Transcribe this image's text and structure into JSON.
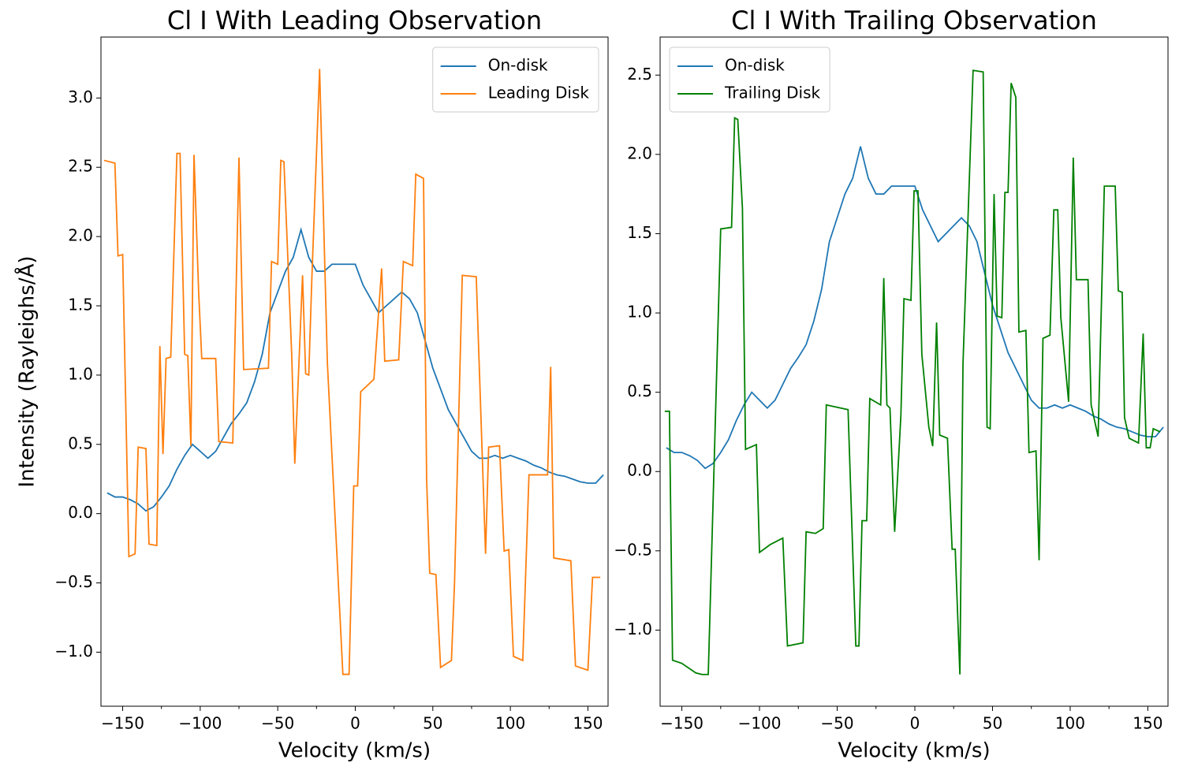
{
  "chart_data": [
    {
      "type": "line",
      "title": "Cl I With Leading Observation",
      "xlabel": "Velocity (km/s)",
      "ylabel": "Intensity (Rayleighs/Å)",
      "xlim": [
        -164,
        163
      ],
      "ylim": [
        -1.39,
        3.44
      ],
      "xticks": [
        {
          "value": -150,
          "label": "−150"
        },
        {
          "value": -100,
          "label": "−100"
        },
        {
          "value": -50,
          "label": "−50"
        },
        0,
        50,
        100,
        150
      ],
      "xminorticks": [
        -125,
        -75,
        -25,
        25,
        75,
        125
      ],
      "yticks": [
        {
          "value": -1.0,
          "label": "−1.0"
        },
        {
          "value": -0.5,
          "label": "−0.5"
        },
        {
          "value": 0,
          "label": "0.0"
        },
        0.5,
        {
          "value": 1.0,
          "label": "1.0"
        },
        1.5,
        {
          "value": 2.0,
          "label": "2.0"
        },
        2.5,
        {
          "value": 3.0,
          "label": "3.0"
        }
      ],
      "legend": "upper right",
      "series": [
        {
          "name": "On-disk",
          "color": "#1f77b4",
          "x": [
            -160,
            -155,
            -150,
            -145,
            -140,
            -135,
            -130,
            -125,
            -120,
            -115,
            -110,
            -105,
            -100,
            -95,
            -90,
            -85,
            -80,
            -75,
            -70,
            -65,
            -60,
            -55,
            -50,
            -45,
            -40,
            -35,
            -30,
            -25,
            -20,
            -15,
            -10,
            -5,
            0,
            5,
            10,
            15,
            20,
            25,
            30,
            35,
            40,
            45,
            50,
            55,
            60,
            65,
            70,
            75,
            80,
            85,
            90,
            95,
            100,
            105,
            110,
            115,
            120,
            125,
            130,
            135,
            140,
            145,
            150,
            155,
            160
          ],
          "values": [
            0.15,
            0.12,
            0.12,
            0.1,
            0.07,
            0.02,
            0.05,
            0.12,
            0.2,
            0.32,
            0.42,
            0.5,
            0.45,
            0.4,
            0.45,
            0.55,
            0.65,
            0.72,
            0.8,
            0.95,
            1.15,
            1.45,
            1.6,
            1.75,
            1.85,
            2.05,
            1.85,
            1.75,
            1.75,
            1.8,
            1.8,
            1.8,
            1.8,
            1.65,
            1.55,
            1.45,
            1.5,
            1.55,
            1.6,
            1.55,
            1.45,
            1.25,
            1.05,
            0.9,
            0.75,
            0.65,
            0.55,
            0.45,
            0.4,
            0.4,
            0.42,
            0.4,
            0.42,
            0.4,
            0.38,
            0.35,
            0.33,
            0.3,
            0.28,
            0.27,
            0.25,
            0.23,
            0.22,
            0.22,
            0.28
          ]
        },
        {
          "name": "Leading Disk",
          "color": "#ff7f0e",
          "x": [
            -162,
            -155,
            -153,
            -150,
            -146,
            -142,
            -140,
            -135,
            -133,
            -128,
            -126,
            -124,
            -122,
            -119,
            -115,
            -113,
            -110,
            -108,
            -106,
            -104,
            -101,
            -99,
            -90,
            -88,
            -79,
            -75,
            -72,
            -56,
            -54,
            -50,
            -48,
            -46,
            -41,
            -39,
            -34,
            -32,
            -30,
            -28,
            -23,
            -18,
            -8,
            -4,
            -1,
            1.5,
            3.5,
            12,
            17,
            19,
            28,
            31,
            37,
            39,
            44,
            46,
            48,
            52,
            55,
            62,
            64,
            69,
            78,
            84,
            86,
            93,
            96,
            99,
            102,
            108,
            112,
            124,
            126,
            128,
            139,
            142,
            150,
            153,
            158
          ],
          "values": [
            2.55,
            2.53,
            1.86,
            1.87,
            -0.31,
            -0.29,
            0.48,
            0.47,
            -0.22,
            -0.23,
            1.21,
            0.43,
            1.12,
            1.13,
            2.6,
            2.6,
            1.15,
            1.14,
            0.49,
            2.59,
            1.6,
            1.12,
            1.12,
            0.52,
            0.51,
            2.57,
            1.04,
            1.05,
            1.82,
            1.8,
            2.55,
            2.54,
            1.15,
            0.36,
            1.72,
            1.01,
            1.0,
            1.7,
            3.21,
            1.09,
            -1.16,
            -1.16,
            0.2,
            0.2,
            0.88,
            0.97,
            1.77,
            1.1,
            1.11,
            1.82,
            1.79,
            2.45,
            2.42,
            0.25,
            -0.43,
            -0.44,
            -1.11,
            -1.06,
            -0.5,
            1.72,
            1.71,
            -0.29,
            0.48,
            0.49,
            -0.27,
            -0.26,
            -1.03,
            -1.06,
            0.28,
            0.28,
            1.06,
            -0.32,
            -0.34,
            -1.1,
            -1.13,
            -0.46,
            -0.46
          ]
        }
      ]
    },
    {
      "type": "line",
      "title": "Cl I With Trailing Observation",
      "xlabel": "Velocity (km/s)",
      "xlim": [
        -164,
        163
      ],
      "ylim": [
        -1.48,
        2.74
      ],
      "xticks": [
        {
          "value": -150,
          "label": "−150"
        },
        {
          "value": -100,
          "label": "−100"
        },
        {
          "value": -50,
          "label": "−50"
        },
        0,
        50,
        100,
        150
      ],
      "xminorticks": [
        -125,
        -75,
        -25,
        25,
        75,
        125
      ],
      "yticks": [
        {
          "value": -1.0,
          "label": "−1.0"
        },
        {
          "value": -0.5,
          "label": "−0.5"
        },
        {
          "value": 0,
          "label": "0.0"
        },
        0.5,
        {
          "value": 1.0,
          "label": "1.0"
        },
        1.5,
        {
          "value": 2.0,
          "label": "2.0"
        },
        2.5
      ],
      "legend": "upper left",
      "series": [
        {
          "name": "On-disk",
          "color": "#1f77b4",
          "x": [
            -160,
            -155,
            -150,
            -145,
            -140,
            -135,
            -130,
            -125,
            -120,
            -115,
            -110,
            -105,
            -100,
            -95,
            -90,
            -85,
            -80,
            -75,
            -70,
            -65,
            -60,
            -55,
            -50,
            -45,
            -40,
            -35,
            -30,
            -25,
            -20,
            -15,
            -10,
            -5,
            0,
            5,
            10,
            15,
            20,
            25,
            30,
            35,
            40,
            45,
            50,
            55,
            60,
            65,
            70,
            75,
            80,
            85,
            90,
            95,
            100,
            105,
            110,
            115,
            120,
            125,
            130,
            135,
            140,
            145,
            150,
            155,
            160
          ],
          "values": [
            0.15,
            0.12,
            0.12,
            0.1,
            0.07,
            0.02,
            0.05,
            0.12,
            0.2,
            0.32,
            0.42,
            0.5,
            0.45,
            0.4,
            0.45,
            0.55,
            0.65,
            0.72,
            0.8,
            0.95,
            1.15,
            1.45,
            1.6,
            1.75,
            1.85,
            2.05,
            1.85,
            1.75,
            1.75,
            1.8,
            1.8,
            1.8,
            1.8,
            1.65,
            1.55,
            1.45,
            1.5,
            1.55,
            1.6,
            1.55,
            1.45,
            1.25,
            1.05,
            0.9,
            0.75,
            0.65,
            0.55,
            0.45,
            0.4,
            0.4,
            0.42,
            0.4,
            0.42,
            0.4,
            0.38,
            0.35,
            0.33,
            0.3,
            0.28,
            0.27,
            0.25,
            0.23,
            0.22,
            0.22,
            0.28
          ]
        },
        {
          "name": "Trailing Disk",
          "color": "#008000",
          "x": [
            -161,
            -158,
            -156,
            -150,
            -141,
            -137,
            -133,
            -125,
            -118,
            -116,
            -114,
            -111,
            -109,
            -102,
            -100,
            -93,
            -85,
            -82,
            -72,
            -70,
            -64,
            -59,
            -57,
            -43,
            -38,
            -36,
            -34,
            -31,
            -29,
            -22,
            -20,
            -18,
            -16,
            -13,
            -9,
            -7,
            -2.5,
            -0.5,
            2,
            4.5,
            9,
            11.5,
            14,
            16,
            21,
            24,
            26,
            29,
            31,
            37.5,
            44,
            46.5,
            48.5,
            51,
            53,
            56,
            58,
            60,
            62,
            65,
            67,
            71.5,
            73.5,
            78,
            80,
            82.5,
            87,
            89.5,
            92,
            94,
            99,
            102,
            104,
            111.5,
            113.5,
            118,
            122,
            129,
            131,
            133.5,
            135,
            138,
            144,
            147,
            149,
            151.5,
            153.5,
            158
          ],
          "values": [
            0.38,
            0.38,
            -1.19,
            -1.21,
            -1.27,
            -1.28,
            -1.28,
            1.53,
            1.54,
            2.23,
            2.22,
            1.66,
            0.14,
            0.17,
            -0.51,
            -0.46,
            -0.42,
            -1.1,
            -1.08,
            -0.38,
            -0.39,
            -0.36,
            0.42,
            0.39,
            -1.1,
            -1.1,
            -0.31,
            -0.31,
            0.46,
            0.42,
            1.22,
            0.42,
            0.4,
            -0.38,
            0.35,
            1.09,
            1.08,
            1.77,
            1.77,
            0.74,
            0.28,
            0.16,
            0.94,
            0.23,
            0.21,
            -0.49,
            -0.49,
            -1.28,
            0.68,
            2.53,
            2.52,
            0.28,
            0.27,
            1.75,
            0.98,
            0.97,
            1.76,
            1.76,
            2.45,
            2.36,
            0.88,
            0.89,
            0.12,
            0.13,
            -0.56,
            0.84,
            0.86,
            1.65,
            1.65,
            0.97,
            0.44,
            1.98,
            1.21,
            1.21,
            0.42,
            0.22,
            1.8,
            1.8,
            1.14,
            1.13,
            0.34,
            0.21,
            0.18,
            0.87,
            0.15,
            0.15,
            0.27,
            0.25
          ]
        }
      ]
    }
  ]
}
